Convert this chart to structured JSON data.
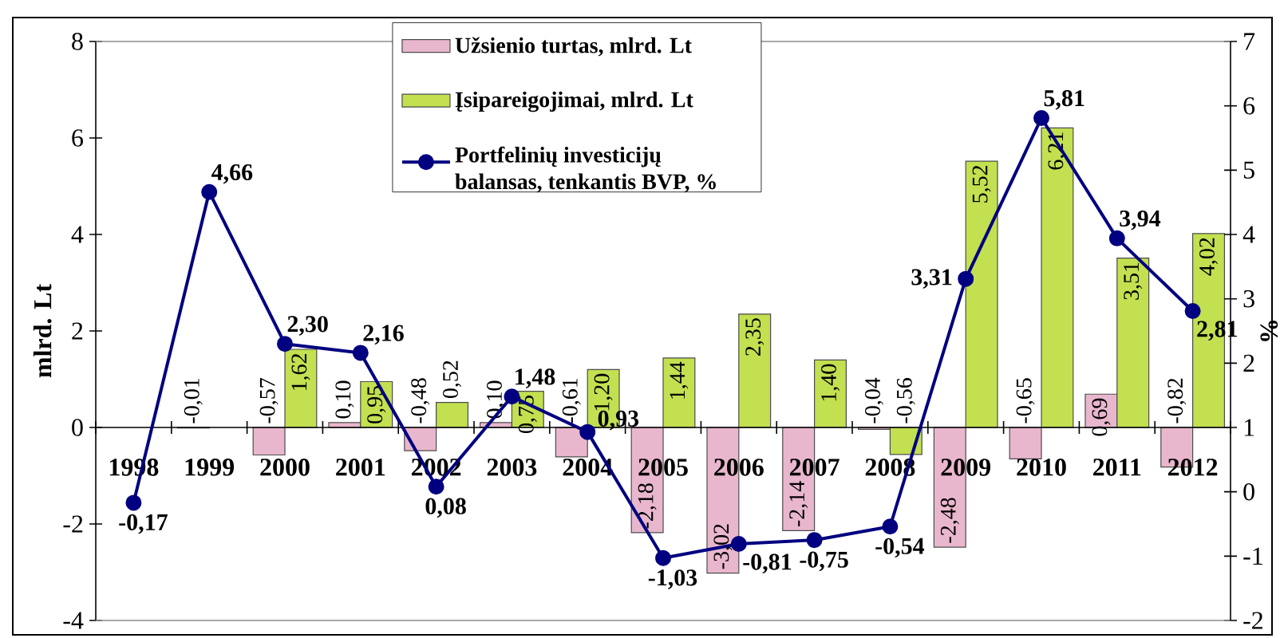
{
  "chart_data": {
    "type": "bar",
    "categories": [
      "1998",
      "1999",
      "2000",
      "2001",
      "2002",
      "2003",
      "2004",
      "2005",
      "2006",
      "2007",
      "2008",
      "2009",
      "2010",
      "2011",
      "2012"
    ],
    "ylabel": "mlrd. Lt",
    "y2label": "%",
    "ylim": [
      -4,
      8
    ],
    "yticks": [
      -4,
      -2,
      0,
      2,
      4,
      6,
      8
    ],
    "y2lim": [
      -2,
      7
    ],
    "y2ticks": [
      -2,
      -1,
      0,
      1,
      2,
      3,
      4,
      5,
      6,
      7
    ],
    "legend": "top",
    "marker": "circle",
    "line_style": "solid",
    "series": [
      {
        "name": "Užsienio turtas, mlrd. Lt",
        "color": "#e9b7cd",
        "values": [
          null,
          -0.01,
          -0.57,
          0.1,
          -0.48,
          0.1,
          -0.61,
          -2.18,
          -3.02,
          -2.14,
          -0.04,
          -2.48,
          -0.65,
          0.69,
          -0.82
        ],
        "value_labels": [
          null,
          "-0,01",
          "-0,57",
          "0,10",
          "-0,48",
          "0,10",
          "-0,61",
          "-2,18",
          "-3,02",
          "-2,14",
          "-0,04",
          "-2,48",
          "-0,65",
          "0,69",
          "-0,82"
        ]
      },
      {
        "name": "Įsipareigojimai, mlrd. Lt",
        "color": "#c2e050",
        "values": [
          null,
          null,
          1.62,
          0.95,
          0.52,
          0.75,
          1.2,
          1.44,
          2.35,
          1.4,
          -0.56,
          5.52,
          6.21,
          3.51,
          4.02
        ],
        "value_labels": [
          null,
          null,
          "1,62",
          "0,95",
          "0,52",
          "0,75",
          "1,20",
          "1,44",
          "2,35",
          "1,40",
          "-0,56",
          "5,52",
          "6,21",
          "3,51",
          "4,02"
        ]
      },
      {
        "name": "Portfelinių investicijų balansas, tenkantis BVP, %",
        "type": "line",
        "axis": "y2",
        "color": "#000080",
        "values": [
          -0.17,
          4.66,
          2.3,
          2.16,
          0.08,
          1.48,
          0.93,
          -1.03,
          -0.81,
          -0.75,
          -0.54,
          3.31,
          5.81,
          3.94,
          2.81
        ],
        "value_labels": [
          "-0,17",
          "4,66",
          "2,30",
          "2,16",
          "0,08",
          "1,48",
          "0,93",
          "-1,03",
          "-0,81",
          "-0,75",
          "-0,54",
          "3,31",
          "5,81",
          "3,94",
          "2,81"
        ]
      }
    ]
  }
}
